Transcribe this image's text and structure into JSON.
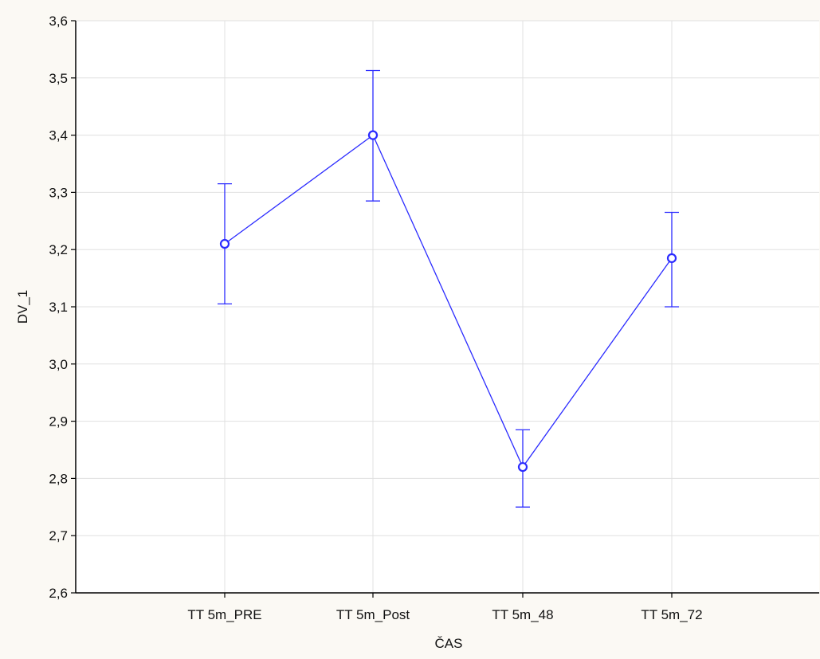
{
  "chart_data": {
    "type": "line",
    "title": "",
    "xlabel": "ČAS",
    "ylabel": "DV_1",
    "categories": [
      "TT 5m_PRE",
      "TT 5m_Post",
      "TT 5m_48",
      "TT 5m_72"
    ],
    "series": [
      {
        "values": [
          3.21,
          3.4,
          2.82,
          3.185
        ],
        "error_low": [
          3.105,
          3.285,
          2.75,
          3.1
        ],
        "error_high": [
          3.315,
          3.513,
          2.885,
          3.265
        ]
      }
    ],
    "ylim": [
      2.6,
      3.6
    ],
    "yticks": [
      "2,6",
      "2,7",
      "2,8",
      "2,9",
      "3,0",
      "3,1",
      "3,2",
      "3,3",
      "3,4",
      "3,5",
      "3,6"
    ],
    "grid": true,
    "line_color": "#2b2bff",
    "background": "#ffffff"
  }
}
